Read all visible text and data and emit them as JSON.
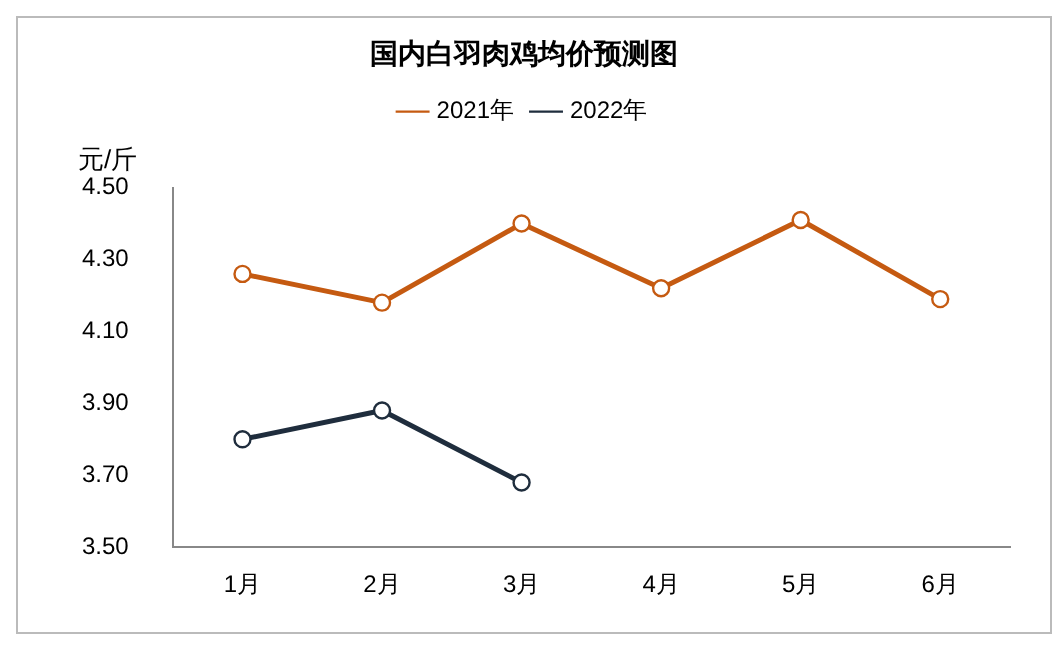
{
  "chart_data": {
    "type": "line",
    "title": "国内白羽肉鸡均价预测图",
    "ylabel": "元/斤",
    "categories": [
      "1月",
      "2月",
      "3月",
      "4月",
      "5月",
      "6月"
    ],
    "series": [
      {
        "name": "2021年",
        "color": "#c55a11",
        "values": [
          4.26,
          4.18,
          4.4,
          4.22,
          4.41,
          4.19
        ]
      },
      {
        "name": "2022年",
        "color": "#1f2d3d",
        "values": [
          3.8,
          3.88,
          3.68,
          null,
          null,
          null
        ]
      }
    ],
    "ylim": [
      3.5,
      4.5
    ],
    "yticks": [
      {
        "value": 3.5,
        "label": "3.50"
      },
      {
        "value": 3.7,
        "label": "3.70"
      },
      {
        "value": 3.9,
        "label": "3.90"
      },
      {
        "value": 4.1,
        "label": "4.10"
      },
      {
        "value": 4.3,
        "label": "4.30"
      },
      {
        "value": 4.5,
        "label": "4.50"
      }
    ],
    "grid": false,
    "legend": "top",
    "marker": "circle",
    "line_style": "solid"
  }
}
